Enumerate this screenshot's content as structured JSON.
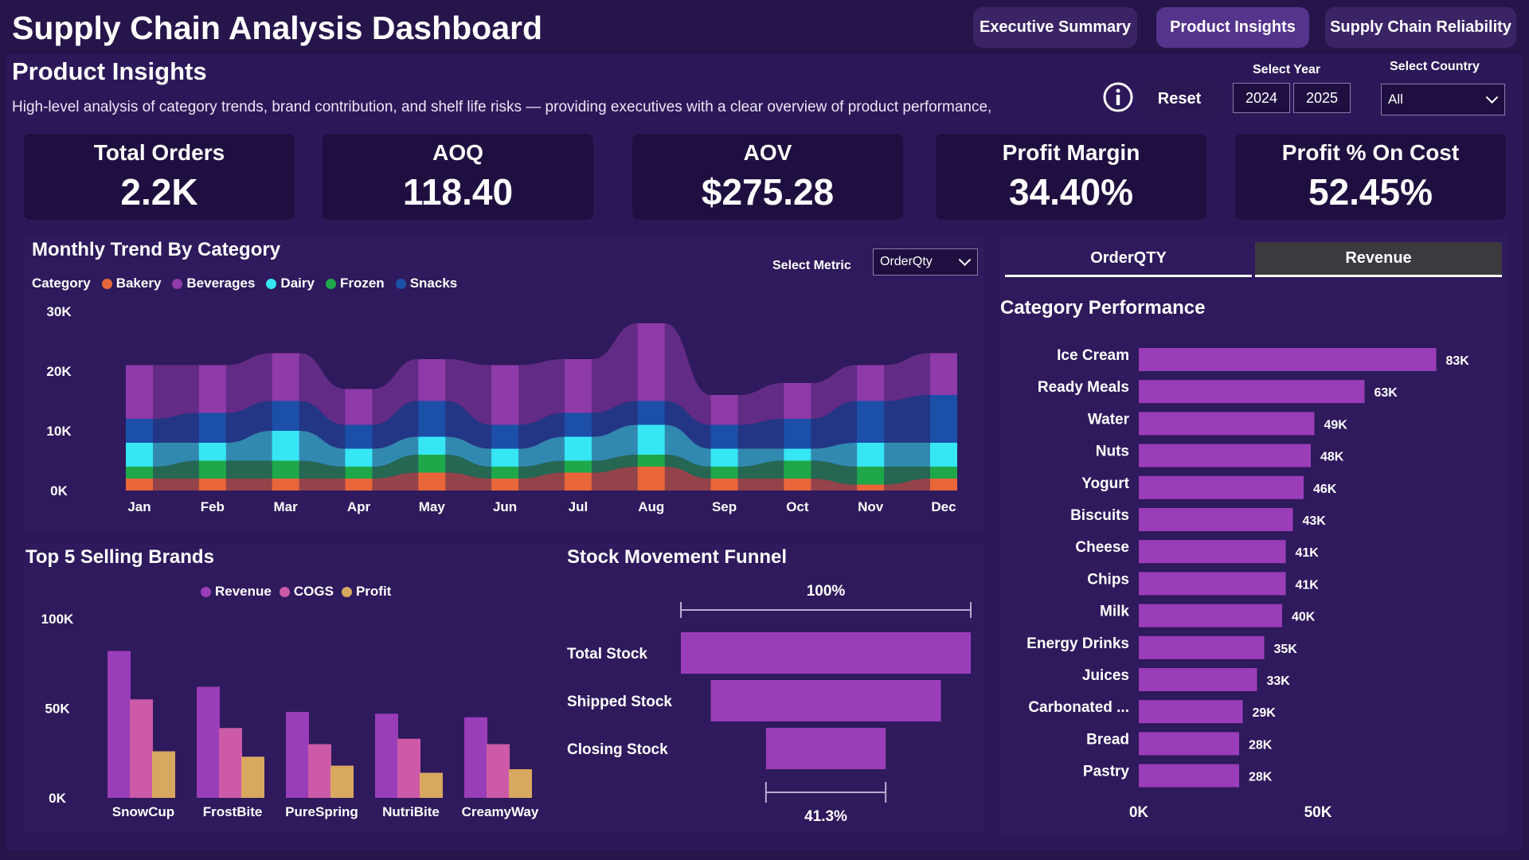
{
  "header": {
    "title": "Supply Chain Analysis Dashboard",
    "nav": [
      "Executive Summary",
      "Product Insights",
      "Supply Chain Reliability"
    ],
    "active_nav": "Product Insights"
  },
  "page": {
    "subtitle": "Product Insights",
    "description": "High-level analysis of category trends, brand contribution, and shelf life risks — providing executives with a clear overview of product performance,"
  },
  "controls": {
    "reset_label": "Reset",
    "info_icon": "info-icon",
    "year_label": "Select Year",
    "years": [
      "2024",
      "2025"
    ],
    "country_label": "Select Country",
    "country_value": "All",
    "metric_label": "Select Metric",
    "metric_value": "OrderQty"
  },
  "kpis": [
    {
      "label": "Total Orders",
      "value": "2.2K"
    },
    {
      "label": "AOQ",
      "value": "118.40"
    },
    {
      "label": "AOV",
      "value": "$275.28"
    },
    {
      "label": "Profit Margin",
      "value": "34.40%"
    },
    {
      "label": "Profit % On Cost",
      "value": "52.45%"
    }
  ],
  "tabs": [
    "OrderQTY",
    "Revenue"
  ],
  "colors": {
    "Bakery": "#e8663a",
    "Beverages": "#8e3aa8",
    "Dairy": "#36e6f5",
    "Frozen": "#1fa84a",
    "Snacks": "#1b4fa8",
    "bar": "#9a3db8",
    "revenue": "#9a3db8",
    "cogs": "#cc5aa8",
    "profit": "#d8a860",
    "funnel": "#9a3db8"
  },
  "chart_data": [
    {
      "id": "monthly-trend",
      "type": "area",
      "title": "Monthly Trend By Category",
      "legend_title": "Category",
      "categories": [
        "Jan",
        "Feb",
        "Mar",
        "Apr",
        "May",
        "Jun",
        "Jul",
        "Aug",
        "Sep",
        "Oct",
        "Nov",
        "Dec"
      ],
      "y_ticks": [
        "0K",
        "10K",
        "20K",
        "30K"
      ],
      "ylim": [
        0,
        30000
      ],
      "series": [
        {
          "name": "Bakery",
          "values": [
            2000,
            2000,
            2000,
            2000,
            3000,
            2000,
            3000,
            4000,
            2000,
            2000,
            1000,
            2000
          ]
        },
        {
          "name": "Frozen",
          "values": [
            2000,
            3000,
            3000,
            2000,
            3000,
            2000,
            2000,
            2000,
            2000,
            3000,
            3000,
            2000
          ]
        },
        {
          "name": "Dairy",
          "values": [
            4000,
            3000,
            5000,
            3000,
            3000,
            3000,
            4000,
            5000,
            3000,
            2000,
            4000,
            4000
          ]
        },
        {
          "name": "Snacks",
          "values": [
            4000,
            5000,
            5000,
            4000,
            6000,
            4000,
            4000,
            4000,
            4000,
            5000,
            7000,
            8000
          ]
        },
        {
          "name": "Beverages",
          "values": [
            9000,
            8000,
            8000,
            6000,
            7000,
            10000,
            9000,
            13000,
            5000,
            6000,
            6000,
            7000
          ]
        }
      ]
    },
    {
      "id": "top-brands",
      "type": "bar",
      "title": "Top 5 Selling Brands",
      "categories": [
        "SnowCup",
        "FrostBite",
        "PureSpring",
        "NutriBite",
        "CreamyWay"
      ],
      "y_ticks": [
        "0K",
        "50K",
        "100K"
      ],
      "ylim": [
        0,
        100000
      ],
      "series": [
        {
          "name": "Revenue",
          "values": [
            82000,
            62000,
            48000,
            47000,
            45000
          ]
        },
        {
          "name": "COGS",
          "values": [
            55000,
            39000,
            30000,
            33000,
            30000
          ]
        },
        {
          "name": "Profit",
          "values": [
            26000,
            23000,
            18000,
            14000,
            16000
          ]
        }
      ]
    },
    {
      "id": "stock-funnel",
      "type": "bar",
      "title": "Stock Movement Funnel",
      "categories": [
        "Total Stock",
        "Shipped Stock",
        "Closing Stock"
      ],
      "values": [
        100,
        79.4,
        41.3
      ],
      "top_label": "100%",
      "bottom_label": "41.3%"
    },
    {
      "id": "category-performance",
      "type": "bar",
      "title": "Category Performance",
      "categories": [
        "Ice Cream",
        "Ready Meals",
        "Water",
        "Nuts",
        "Yogurt",
        "Biscuits",
        "Cheese",
        "Chips",
        "Milk",
        "Energy Drinks",
        "Juices",
        "Carbonated ...",
        "Bread",
        "Pastry"
      ],
      "values": [
        83000,
        63000,
        49000,
        48000,
        46000,
        43000,
        41000,
        41000,
        40000,
        35000,
        33000,
        29000,
        28000,
        28000
      ],
      "data_labels": [
        "83K",
        "63K",
        "49K",
        "48K",
        "46K",
        "43K",
        "41K",
        "41K",
        "40K",
        "35K",
        "33K",
        "29K",
        "28K",
        "28K"
      ],
      "x_ticks": [
        "0K",
        "50K"
      ],
      "xlim": [
        0,
        50000
      ]
    }
  ]
}
